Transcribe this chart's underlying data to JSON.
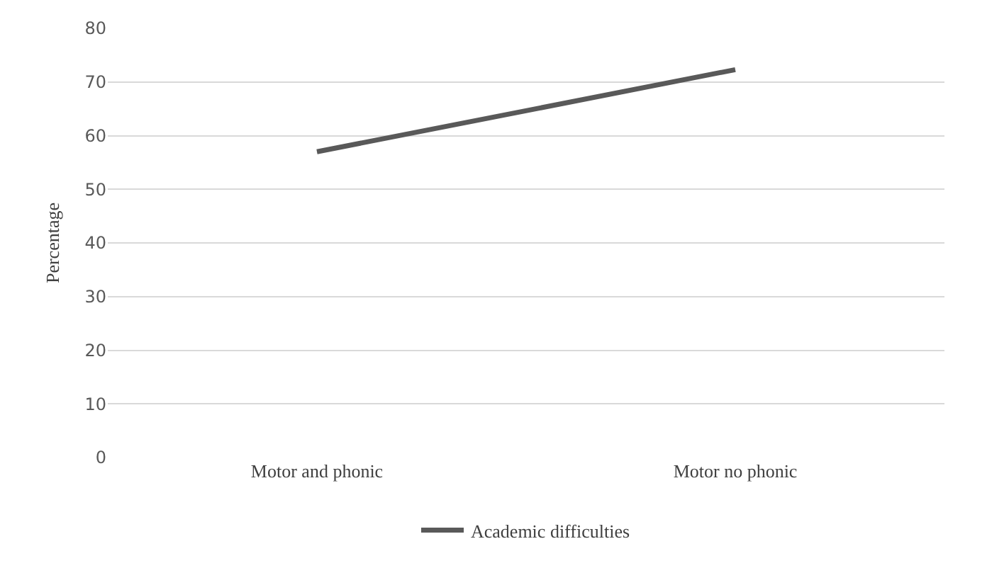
{
  "chart_data": {
    "type": "line",
    "ylabel": "Percentage",
    "categories": [
      "Motor and phonic",
      "Motor no phonic"
    ],
    "series": [
      {
        "name": "Academic difficulties",
        "color": "#595959",
        "values": [
          57,
          72.3
        ]
      }
    ],
    "ylim": [
      0,
      80
    ],
    "yticks": [
      0,
      10,
      20,
      30,
      40,
      50,
      60,
      70,
      80
    ],
    "grid": "y",
    "legend": "bottom",
    "marker": "none",
    "line_style": "solid"
  }
}
